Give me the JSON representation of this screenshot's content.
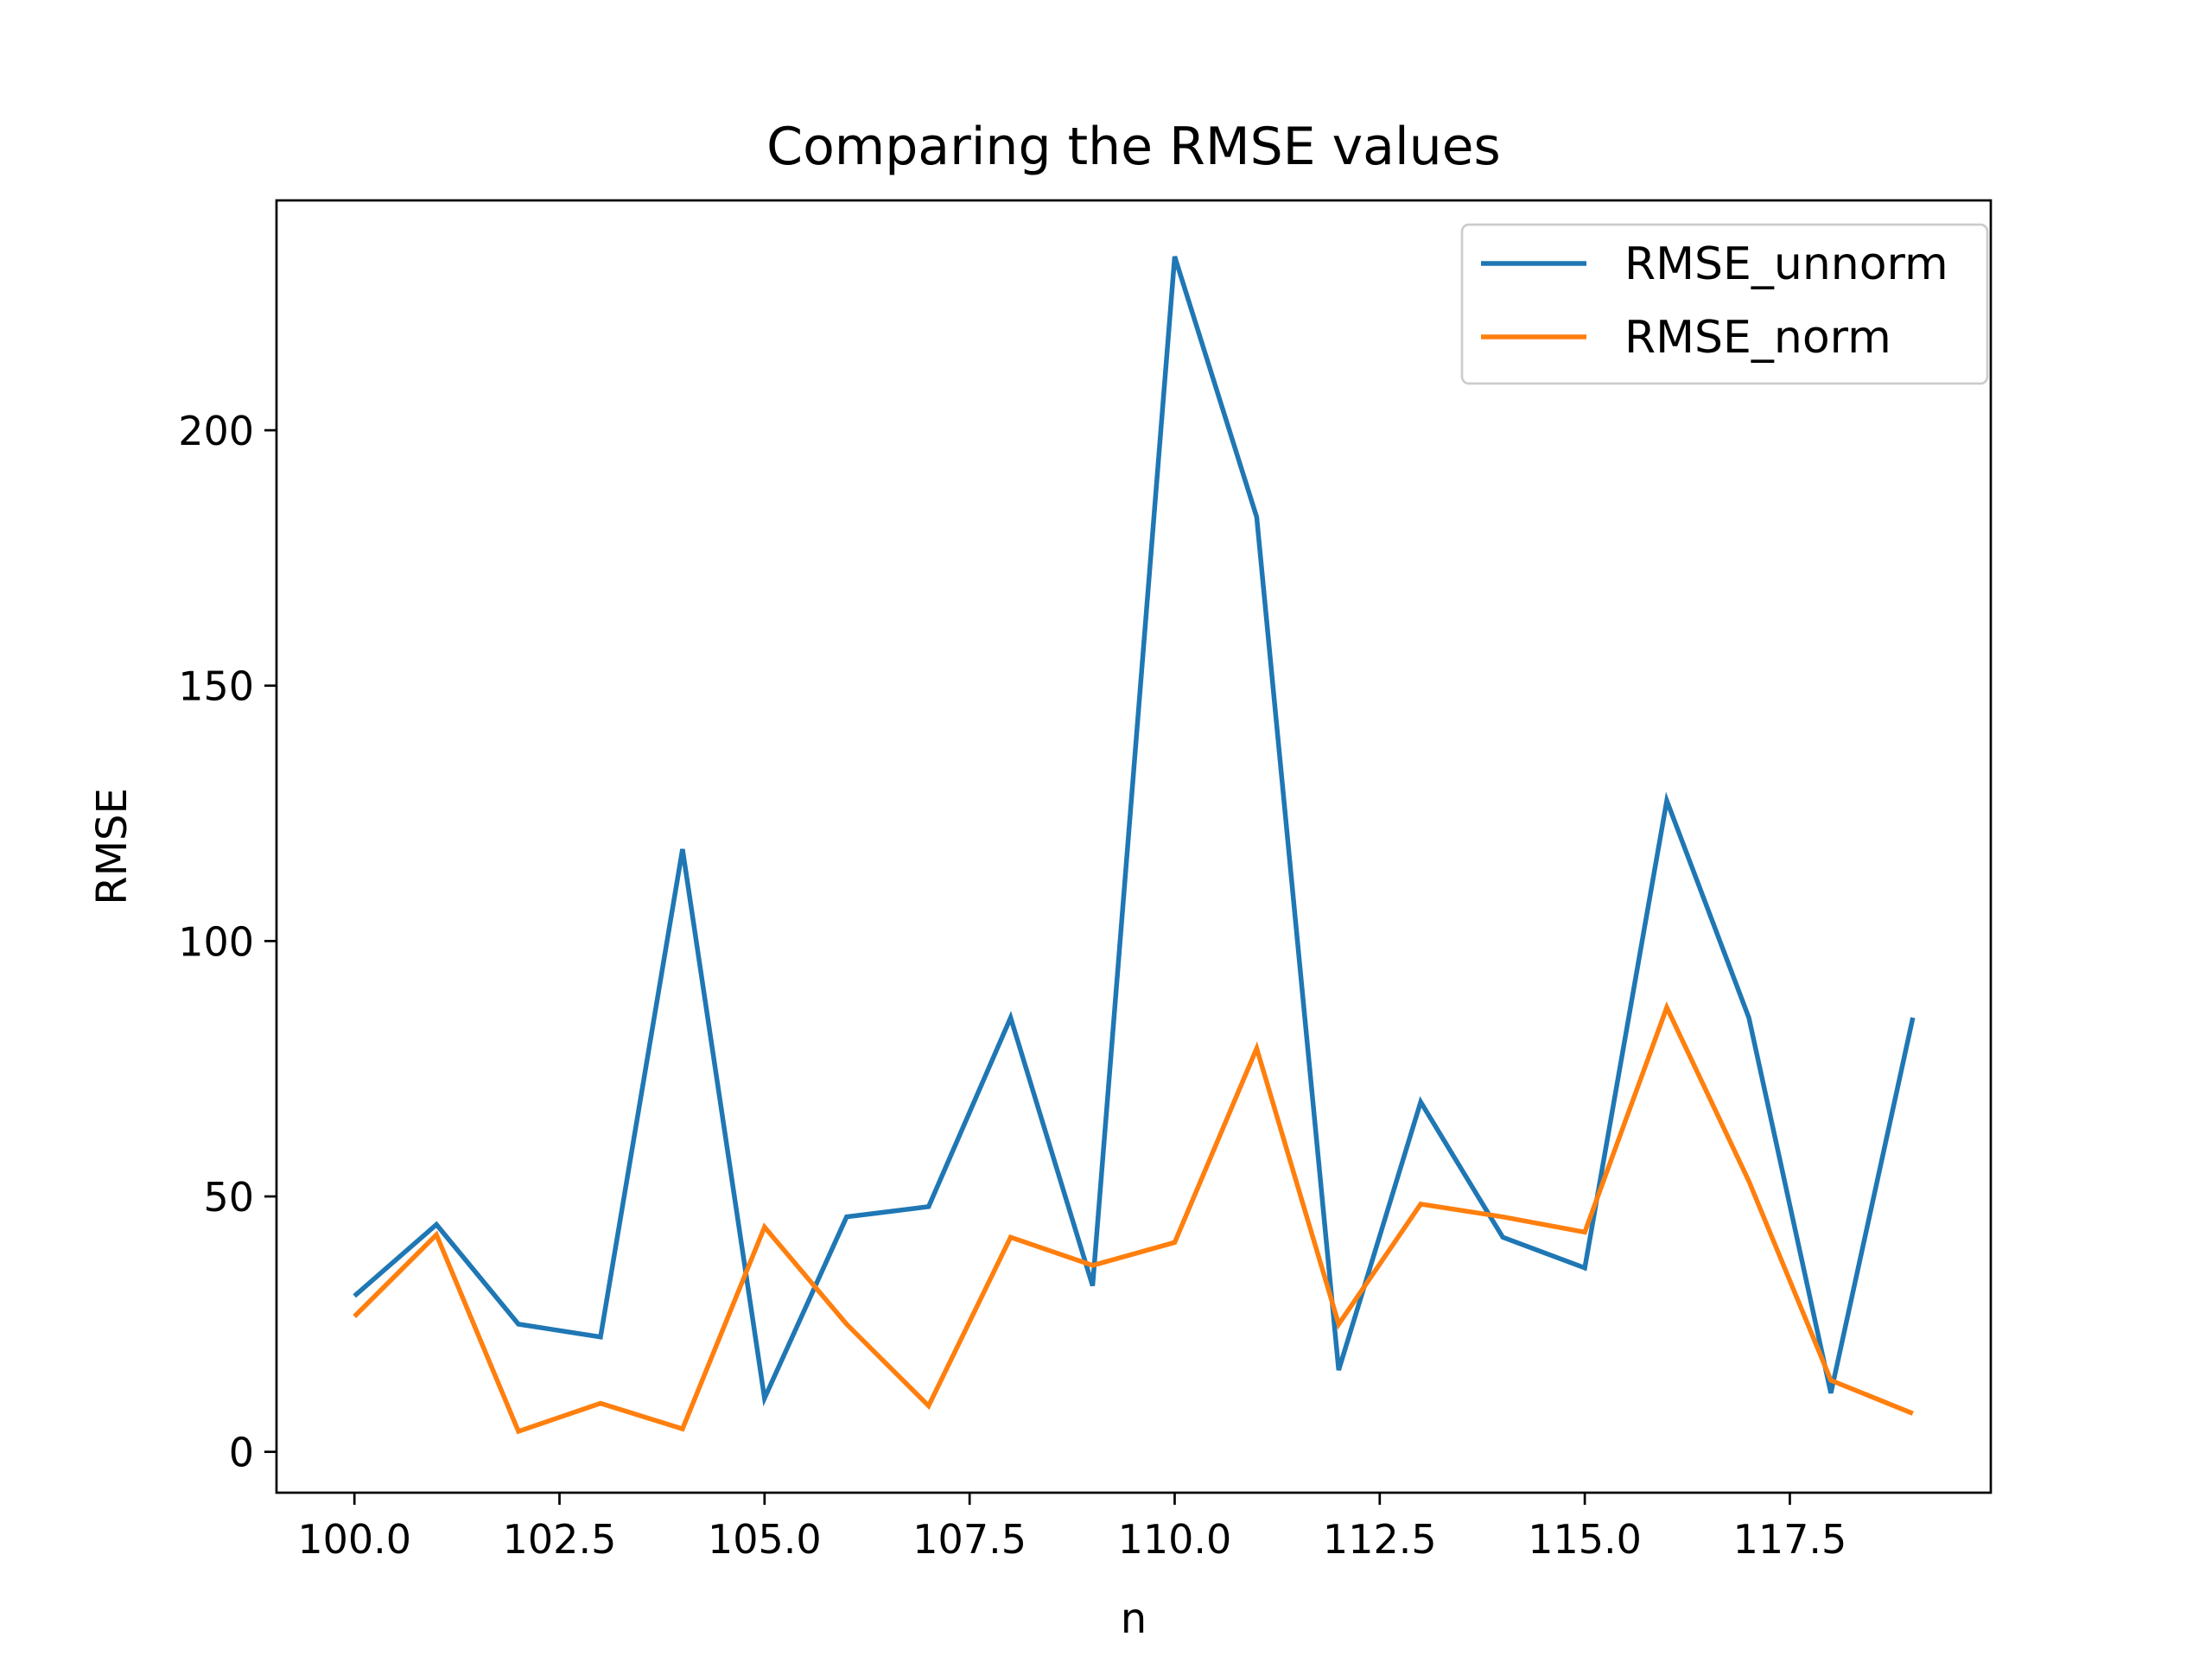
{
  "chart_data": {
    "type": "line",
    "title": "Comparing the RMSE values",
    "xlabel": "n",
    "ylabel": "RMSE",
    "xlim": [
      99.05,
      119.95
    ],
    "ylim": [
      -8,
      245
    ],
    "xticks": [
      100.0,
      102.5,
      105.0,
      107.5,
      110.0,
      112.5,
      115.0,
      117.5
    ],
    "xtick_labels": [
      "100.0",
      "102.5",
      "105.0",
      "107.5",
      "110.0",
      "112.5",
      "115.0",
      "117.5"
    ],
    "yticks": [
      0,
      50,
      100,
      150,
      200
    ],
    "ytick_labels": [
      "0",
      "50",
      "100",
      "150",
      "200"
    ],
    "grid": false,
    "legend_position": "top-right",
    "x": [
      100,
      101,
      102,
      103,
      104,
      105,
      106,
      107,
      108,
      109,
      110,
      111,
      112,
      113,
      114,
      115,
      116,
      117,
      118,
      119
    ],
    "series": [
      {
        "name": "RMSE_unnorm",
        "color": "#1f77b4",
        "values": [
          30.5,
          44.5,
          25,
          22.5,
          118,
          10.5,
          46,
          48,
          85,
          32.5,
          234,
          183,
          16,
          68.5,
          42,
          36,
          127.5,
          85,
          11.5,
          85
        ]
      },
      {
        "name": "RMSE_norm",
        "color": "#ff7f0e",
        "values": [
          26.5,
          42.5,
          4,
          9.5,
          4.5,
          44,
          25,
          9,
          42,
          36.5,
          41,
          79,
          25,
          48.5,
          46,
          43,
          87,
          53,
          14,
          7.5
        ]
      }
    ]
  }
}
